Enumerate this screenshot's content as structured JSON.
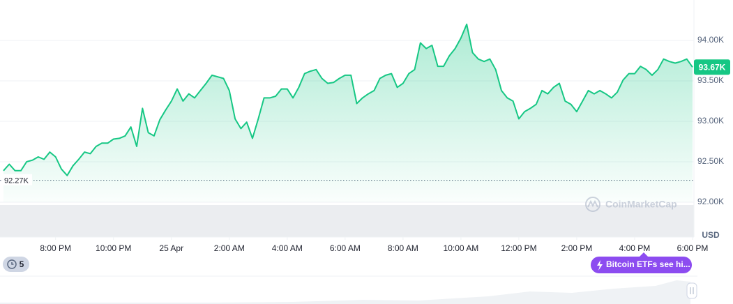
{
  "chart_data": {
    "type": "area",
    "series": [
      {
        "name": "Price",
        "color": "#16c784",
        "values": [
          92390,
          92470,
          92390,
          92390,
          92500,
          92520,
          92560,
          92530,
          92620,
          92560,
          92410,
          92330,
          92450,
          92530,
          92620,
          92600,
          92690,
          92730,
          92730,
          92780,
          92790,
          92820,
          92930,
          92690,
          93160,
          92860,
          92820,
          93020,
          93140,
          93250,
          93400,
          93250,
          93340,
          93290,
          93380,
          93470,
          93570,
          93550,
          93530,
          93380,
          93030,
          92910,
          92990,
          92790,
          93030,
          93290,
          93290,
          93310,
          93400,
          93400,
          93290,
          93420,
          93590,
          93620,
          93640,
          93530,
          93470,
          93480,
          93530,
          93570,
          93570,
          93220,
          93290,
          93340,
          93380,
          93530,
          93570,
          93590,
          93420,
          93470,
          93590,
          93640,
          93970,
          93900,
          93940,
          93680,
          93680,
          93810,
          93900,
          94030,
          94200,
          93850,
          93770,
          93740,
          93770,
          93640,
          93380,
          93290,
          93250,
          93030,
          93120,
          93160,
          93210,
          93380,
          93340,
          93420,
          93470,
          93250,
          93210,
          93120,
          93250,
          93380,
          93340,
          93380,
          93340,
          93290,
          93360,
          93510,
          93590,
          93590,
          93680,
          93640,
          93570,
          93640,
          93770,
          93740,
          93720,
          93740,
          93770,
          93670
        ]
      }
    ],
    "xlim": [
      0,
      119
    ],
    "xticks": [
      {
        "value": 9,
        "label": "8:00 PM"
      },
      {
        "value": 19,
        "label": "10:00 PM"
      },
      {
        "value": 29,
        "label": "25 Apr"
      },
      {
        "value": 39,
        "label": "2:00 AM"
      },
      {
        "value": 49,
        "label": "4:00 AM"
      },
      {
        "value": 59,
        "label": "6:00 AM"
      },
      {
        "value": 69,
        "label": "8:00 AM"
      },
      {
        "value": 79,
        "label": "10:00 AM"
      },
      {
        "value": 89,
        "label": "12:00 PM"
      },
      {
        "value": 99,
        "label": "2:00 PM"
      },
      {
        "value": 109,
        "label": "4:00 PM"
      },
      {
        "value": 119,
        "label": "6:00 PM"
      }
    ],
    "ylim": [
      92000,
      94500
    ],
    "yticks": [
      {
        "value": 92000,
        "label": "92.00K"
      },
      {
        "value": 92500,
        "label": "92.50K"
      },
      {
        "value": 93000,
        "label": "93.00K"
      },
      {
        "value": 93500,
        "label": "93.50K"
      },
      {
        "value": 94000,
        "label": "94.00K"
      }
    ],
    "y_unit": "USD",
    "grid": true,
    "reference_line": {
      "value": 92270,
      "label": "92.27K"
    },
    "current_price": {
      "value": 93670,
      "label": "93.67K"
    },
    "watermark": "CoinMarketCap",
    "events_count": "5",
    "event_badge": "Bitcoin ETFs see hi..."
  }
}
